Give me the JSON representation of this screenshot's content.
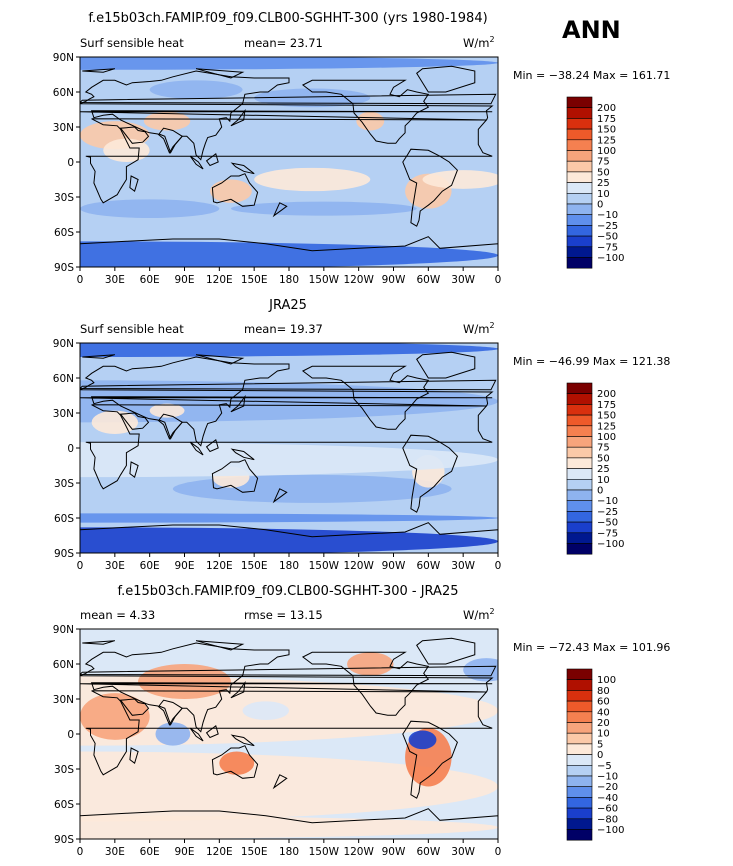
{
  "season": "ANN",
  "colors": {
    "land_fill": "#cfe4f6",
    "coast": "#000000"
  },
  "panels": [
    {
      "title": "f.e15b03ch.FAMIP.f09_f09.CLB00-SGHHT-300 (yrs 1980-1984)",
      "variable": "Surf sensible heat",
      "mean_text": "mean=  23.71",
      "rmse_text": "",
      "units": "W/m",
      "units_sup": "2",
      "minmax": "Min = −38.24  Max = 161.71",
      "legend_labels": [
        "200",
        "175",
        "150",
        "125",
        "100",
        "75",
        "50",
        "25",
        "10",
        "0",
        "−10",
        "−25",
        "−50",
        "−75",
        "−100"
      ],
      "legend_colors": [
        "#7a0000",
        "#b01000",
        "#d9300e",
        "#ee5a2a",
        "#f58050",
        "#f7a47c",
        "#fbc9a8",
        "#fde9d9",
        "#dbe8f7",
        "#b5d0f3",
        "#8eb3ef",
        "#5f8fec",
        "#3366e0",
        "#1a3fcc",
        "#00188f",
        "#000066"
      ]
    },
    {
      "title": "JRA25",
      "variable": "Surf sensible heat",
      "mean_text": "mean=  19.37",
      "rmse_text": "",
      "units": "W/m",
      "units_sup": "2",
      "minmax": "Min = −46.99  Max = 121.38",
      "legend_labels": [
        "200",
        "175",
        "150",
        "125",
        "100",
        "75",
        "50",
        "25",
        "10",
        "0",
        "−10",
        "−25",
        "−50",
        "−75",
        "−100"
      ],
      "legend_colors": [
        "#7a0000",
        "#b01000",
        "#d9300e",
        "#ee5a2a",
        "#f58050",
        "#f7a47c",
        "#fbc9a8",
        "#fde9d9",
        "#dbe8f7",
        "#b5d0f3",
        "#8eb3ef",
        "#5f8fec",
        "#3366e0",
        "#1a3fcc",
        "#00188f",
        "#000066"
      ]
    },
    {
      "title": "f.e15b03ch.FAMIP.f09_f09.CLB00-SGHHT-300 - JRA25",
      "variable": "",
      "mean_text": "mean =   4.33",
      "rmse_text": "rmse =   13.15",
      "units": "W/m",
      "units_sup": "2",
      "minmax": "Min = −72.43  Max = 101.96",
      "legend_labels": [
        "100",
        "80",
        "60",
        "40",
        "20",
        "10",
        "5",
        "0",
        "−5",
        "−10",
        "−20",
        "−40",
        "−60",
        "−80",
        "−100"
      ],
      "legend_colors": [
        "#7a0000",
        "#b01000",
        "#d9300e",
        "#ee5a2a",
        "#f58050",
        "#f7a47c",
        "#fbc9a8",
        "#fde9d9",
        "#dbe8f7",
        "#b5d0f3",
        "#8eb3ef",
        "#5f8fec",
        "#3366e0",
        "#1a3fcc",
        "#00188f",
        "#000066"
      ]
    }
  ],
  "lat_labels": [
    "90N",
    "60N",
    "30N",
    "0",
    "30S",
    "60S",
    "90S"
  ],
  "lon_labels": [
    "0",
    "30E",
    "60E",
    "90E",
    "120E",
    "150E",
    "180",
    "150W",
    "120W",
    "90W",
    "60W",
    "30W",
    "0"
  ]
}
